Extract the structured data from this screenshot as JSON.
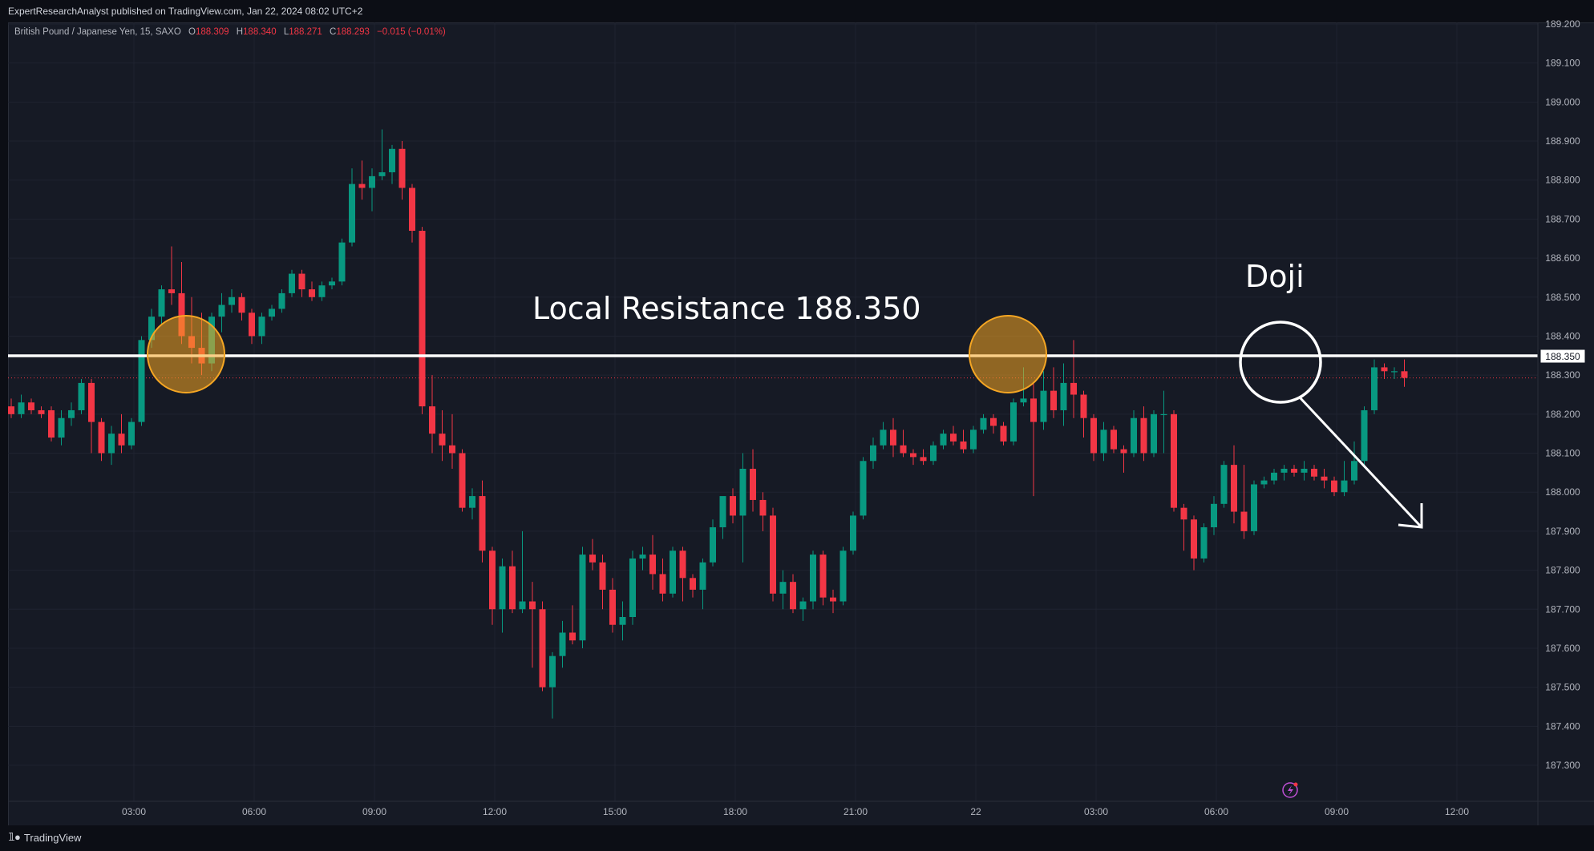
{
  "header": {
    "publisher": "ExpertResearchAnalyst published on TradingView.com, Jan 22, 2024 08:02 UTC+2"
  },
  "legend": {
    "symbol": "British Pound / Japanese Yen, 15, SAXO",
    "open_label": "O",
    "open": "188.309",
    "high_label": "H",
    "high": "188.340",
    "low_label": "L",
    "low": "188.271",
    "close_label": "C",
    "close": "188.293",
    "change": "−0.015 (−0.01%)"
  },
  "footer": {
    "brand": "TradingView"
  },
  "colors": {
    "up": "#089981",
    "down": "#f23645",
    "background": "#161a25",
    "resistance": "#ffffff",
    "highlight": "#f5a623"
  },
  "chart_data": {
    "type": "candlestick",
    "y_ticks": [
      "189.200",
      "189.100",
      "189.000",
      "188.900",
      "188.800",
      "188.700",
      "188.600",
      "188.500",
      "188.400",
      "188.300",
      "188.200",
      "188.100",
      "188.000",
      "187.900",
      "187.800",
      "187.700",
      "187.600",
      "187.500",
      "187.400",
      "187.300"
    ],
    "ylim": [
      187.24,
      189.21
    ],
    "x_ticks": [
      {
        "label": "03:00",
        "bar": 12
      },
      {
        "label": "06:00",
        "bar": 24
      },
      {
        "label": "09:00",
        "bar": 36
      },
      {
        "label": "12:00",
        "bar": 48
      },
      {
        "label": "15:00",
        "bar": 60
      },
      {
        "label": "18:00",
        "bar": 72
      },
      {
        "label": "21:00",
        "bar": 84
      },
      {
        "label": "22",
        "bar": 96
      },
      {
        "label": "03:00",
        "bar": 108
      },
      {
        "label": "06:00",
        "bar": 120
      },
      {
        "label": "09:00",
        "bar": 132
      },
      {
        "label": "12:00",
        "bar": 144
      }
    ],
    "current_price": 188.293,
    "resistance": {
      "value": 188.35,
      "label": "188.350",
      "text": "Local Resistance 188.350"
    },
    "annotations": {
      "doji": "Doji"
    },
    "candles": [
      [
        188.22,
        188.24,
        188.19,
        188.2
      ],
      [
        188.2,
        188.25,
        188.19,
        188.23
      ],
      [
        188.23,
        188.24,
        188.2,
        188.21
      ],
      [
        188.21,
        188.22,
        188.19,
        188.2
      ],
      [
        188.21,
        188.22,
        188.13,
        188.14
      ],
      [
        188.14,
        188.21,
        188.12,
        188.19
      ],
      [
        188.19,
        188.23,
        188.17,
        188.21
      ],
      [
        188.21,
        188.29,
        188.2,
        188.28
      ],
      [
        188.28,
        188.29,
        188.1,
        188.18
      ],
      [
        188.18,
        188.19,
        188.08,
        188.1
      ],
      [
        188.1,
        188.17,
        188.07,
        188.15
      ],
      [
        188.15,
        188.2,
        188.1,
        188.12
      ],
      [
        188.12,
        188.19,
        188.11,
        188.18
      ],
      [
        188.18,
        188.4,
        188.17,
        188.39
      ],
      [
        188.39,
        188.47,
        188.37,
        188.45
      ],
      [
        188.45,
        188.53,
        188.43,
        188.52
      ],
      [
        188.52,
        188.63,
        188.48,
        188.51
      ],
      [
        188.51,
        188.59,
        188.38,
        188.4
      ],
      [
        188.4,
        188.5,
        188.33,
        188.37
      ],
      [
        188.37,
        188.46,
        188.3,
        188.33
      ],
      [
        188.33,
        188.46,
        188.31,
        188.45
      ],
      [
        188.45,
        188.51,
        188.41,
        188.48
      ],
      [
        188.48,
        188.52,
        188.46,
        188.5
      ],
      [
        188.5,
        188.51,
        188.44,
        188.46
      ],
      [
        188.46,
        188.47,
        188.38,
        188.4
      ],
      [
        188.4,
        188.46,
        188.38,
        188.45
      ],
      [
        188.45,
        188.48,
        188.44,
        188.47
      ],
      [
        188.47,
        188.52,
        188.46,
        188.51
      ],
      [
        188.51,
        188.57,
        188.5,
        188.56
      ],
      [
        188.56,
        188.57,
        188.5,
        188.52
      ],
      [
        188.52,
        188.54,
        188.49,
        188.5
      ],
      [
        188.5,
        188.54,
        188.49,
        188.53
      ],
      [
        188.53,
        188.55,
        188.52,
        188.54
      ],
      [
        188.54,
        188.65,
        188.53,
        188.64
      ],
      [
        188.64,
        188.83,
        188.63,
        188.79
      ],
      [
        188.79,
        188.85,
        188.75,
        188.78
      ],
      [
        188.78,
        188.83,
        188.72,
        188.81
      ],
      [
        188.81,
        188.93,
        188.8,
        188.82
      ],
      [
        188.82,
        188.89,
        188.79,
        188.88
      ],
      [
        188.88,
        188.9,
        188.75,
        188.78
      ],
      [
        188.78,
        188.79,
        188.64,
        188.67
      ],
      [
        188.67,
        188.68,
        188.2,
        188.22
      ],
      [
        188.22,
        188.3,
        188.1,
        188.15
      ],
      [
        188.15,
        188.21,
        188.08,
        188.12
      ],
      [
        188.12,
        188.2,
        188.06,
        188.1
      ],
      [
        188.1,
        188.11,
        187.95,
        187.96
      ],
      [
        187.96,
        188.01,
        187.93,
        187.99
      ],
      [
        187.99,
        188.03,
        187.82,
        187.85
      ],
      [
        187.85,
        187.86,
        187.66,
        187.7
      ],
      [
        187.7,
        187.83,
        187.64,
        187.81
      ],
      [
        187.81,
        187.85,
        187.69,
        187.7
      ],
      [
        187.7,
        187.9,
        187.69,
        187.72
      ],
      [
        187.72,
        187.77,
        187.55,
        187.7
      ],
      [
        187.7,
        187.72,
        187.49,
        187.5
      ],
      [
        187.5,
        187.59,
        187.42,
        187.58
      ],
      [
        187.58,
        187.67,
        187.55,
        187.64
      ],
      [
        187.64,
        187.71,
        187.61,
        187.62
      ],
      [
        187.62,
        187.86,
        187.6,
        187.84
      ],
      [
        187.84,
        187.88,
        187.8,
        187.82
      ],
      [
        187.82,
        187.84,
        187.7,
        187.75
      ],
      [
        187.75,
        187.78,
        187.64,
        187.66
      ],
      [
        187.66,
        187.72,
        187.62,
        187.68
      ],
      [
        187.68,
        187.85,
        187.66,
        187.83
      ],
      [
        187.83,
        187.86,
        187.8,
        187.84
      ],
      [
        187.84,
        187.89,
        187.75,
        187.79
      ],
      [
        187.79,
        187.83,
        187.72,
        187.74
      ],
      [
        187.74,
        187.86,
        187.73,
        187.85
      ],
      [
        187.85,
        187.86,
        187.72,
        187.78
      ],
      [
        187.78,
        187.79,
        187.73,
        187.75
      ],
      [
        187.75,
        187.83,
        187.7,
        187.82
      ],
      [
        187.82,
        187.93,
        187.81,
        187.91
      ],
      [
        187.91,
        187.98,
        187.88,
        187.99
      ],
      [
        187.99,
        188.01,
        187.92,
        187.94
      ],
      [
        187.94,
        188.1,
        187.82,
        188.06
      ],
      [
        188.06,
        188.11,
        187.95,
        187.98
      ],
      [
        187.98,
        188.0,
        187.9,
        187.94
      ],
      [
        187.94,
        187.96,
        187.72,
        187.74
      ],
      [
        187.74,
        187.8,
        187.7,
        187.77
      ],
      [
        187.77,
        187.79,
        187.69,
        187.7
      ],
      [
        187.7,
        187.73,
        187.67,
        187.72
      ],
      [
        187.72,
        187.85,
        187.7,
        187.84
      ],
      [
        187.84,
        187.85,
        187.71,
        187.73
      ],
      [
        187.73,
        187.75,
        187.69,
        187.72
      ],
      [
        187.72,
        187.86,
        187.71,
        187.85
      ],
      [
        187.85,
        187.95,
        187.84,
        187.94
      ],
      [
        187.94,
        188.09,
        187.93,
        188.08
      ],
      [
        188.08,
        188.14,
        188.06,
        188.12
      ],
      [
        188.12,
        188.18,
        188.11,
        188.16
      ],
      [
        188.16,
        188.19,
        188.09,
        188.12
      ],
      [
        188.12,
        188.16,
        188.09,
        188.1
      ],
      [
        188.1,
        188.11,
        188.07,
        188.09
      ],
      [
        188.09,
        188.11,
        188.07,
        188.08
      ],
      [
        188.08,
        188.13,
        188.07,
        188.12
      ],
      [
        188.12,
        188.16,
        188.11,
        188.15
      ],
      [
        188.15,
        188.17,
        188.12,
        188.13
      ],
      [
        188.13,
        188.16,
        188.1,
        188.11
      ],
      [
        188.11,
        188.17,
        188.1,
        188.16
      ],
      [
        188.16,
        188.2,
        188.15,
        188.19
      ],
      [
        188.19,
        188.2,
        188.15,
        188.17
      ],
      [
        188.17,
        188.18,
        188.12,
        188.13
      ],
      [
        188.13,
        188.24,
        188.12,
        188.23
      ],
      [
        188.23,
        188.32,
        188.22,
        188.24
      ],
      [
        188.24,
        188.28,
        187.99,
        188.18
      ],
      [
        188.18,
        188.31,
        188.16,
        188.26
      ],
      [
        188.26,
        188.32,
        188.19,
        188.21
      ],
      [
        188.21,
        188.33,
        188.17,
        188.28
      ],
      [
        188.28,
        188.39,
        188.19,
        188.25
      ],
      [
        188.25,
        188.26,
        188.14,
        188.19
      ],
      [
        188.19,
        188.2,
        188.08,
        188.1
      ],
      [
        188.1,
        188.18,
        188.08,
        188.16
      ],
      [
        188.16,
        188.17,
        188.1,
        188.11
      ],
      [
        188.11,
        188.12,
        188.05,
        188.1
      ],
      [
        188.1,
        188.21,
        188.09,
        188.19
      ],
      [
        188.19,
        188.22,
        188.08,
        188.1
      ],
      [
        188.1,
        188.21,
        188.09,
        188.2
      ],
      [
        188.2,
        188.26,
        188.1,
        188.2
      ],
      [
        188.2,
        188.21,
        187.95,
        187.96
      ],
      [
        187.96,
        187.97,
        187.85,
        187.93
      ],
      [
        187.93,
        187.94,
        187.8,
        187.83
      ],
      [
        187.83,
        187.92,
        187.82,
        187.91
      ],
      [
        187.91,
        187.99,
        187.89,
        187.97
      ],
      [
        187.97,
        188.08,
        187.96,
        188.07
      ],
      [
        188.07,
        188.12,
        187.92,
        187.95
      ],
      [
        187.95,
        188.07,
        187.88,
        187.9
      ],
      [
        187.9,
        188.03,
        187.89,
        188.02
      ],
      [
        188.02,
        188.04,
        188.01,
        188.03
      ],
      [
        188.03,
        188.06,
        188.02,
        188.05
      ],
      [
        188.05,
        188.07,
        188.03,
        188.06
      ],
      [
        188.06,
        188.07,
        188.04,
        188.05
      ],
      [
        188.05,
        188.08,
        188.03,
        188.06
      ],
      [
        188.06,
        188.07,
        188.03,
        188.04
      ],
      [
        188.04,
        188.06,
        188.01,
        188.03
      ],
      [
        188.03,
        188.04,
        187.99,
        188.0
      ],
      [
        188.0,
        188.08,
        187.99,
        188.03
      ],
      [
        188.03,
        188.13,
        188.02,
        188.08
      ],
      [
        188.08,
        188.22,
        188.07,
        188.21
      ],
      [
        188.21,
        188.34,
        188.2,
        188.32
      ],
      [
        188.32,
        188.33,
        188.29,
        188.31
      ],
      [
        188.31,
        188.32,
        188.29,
        188.31
      ],
      [
        188.31,
        188.34,
        188.27,
        188.293
      ]
    ]
  }
}
